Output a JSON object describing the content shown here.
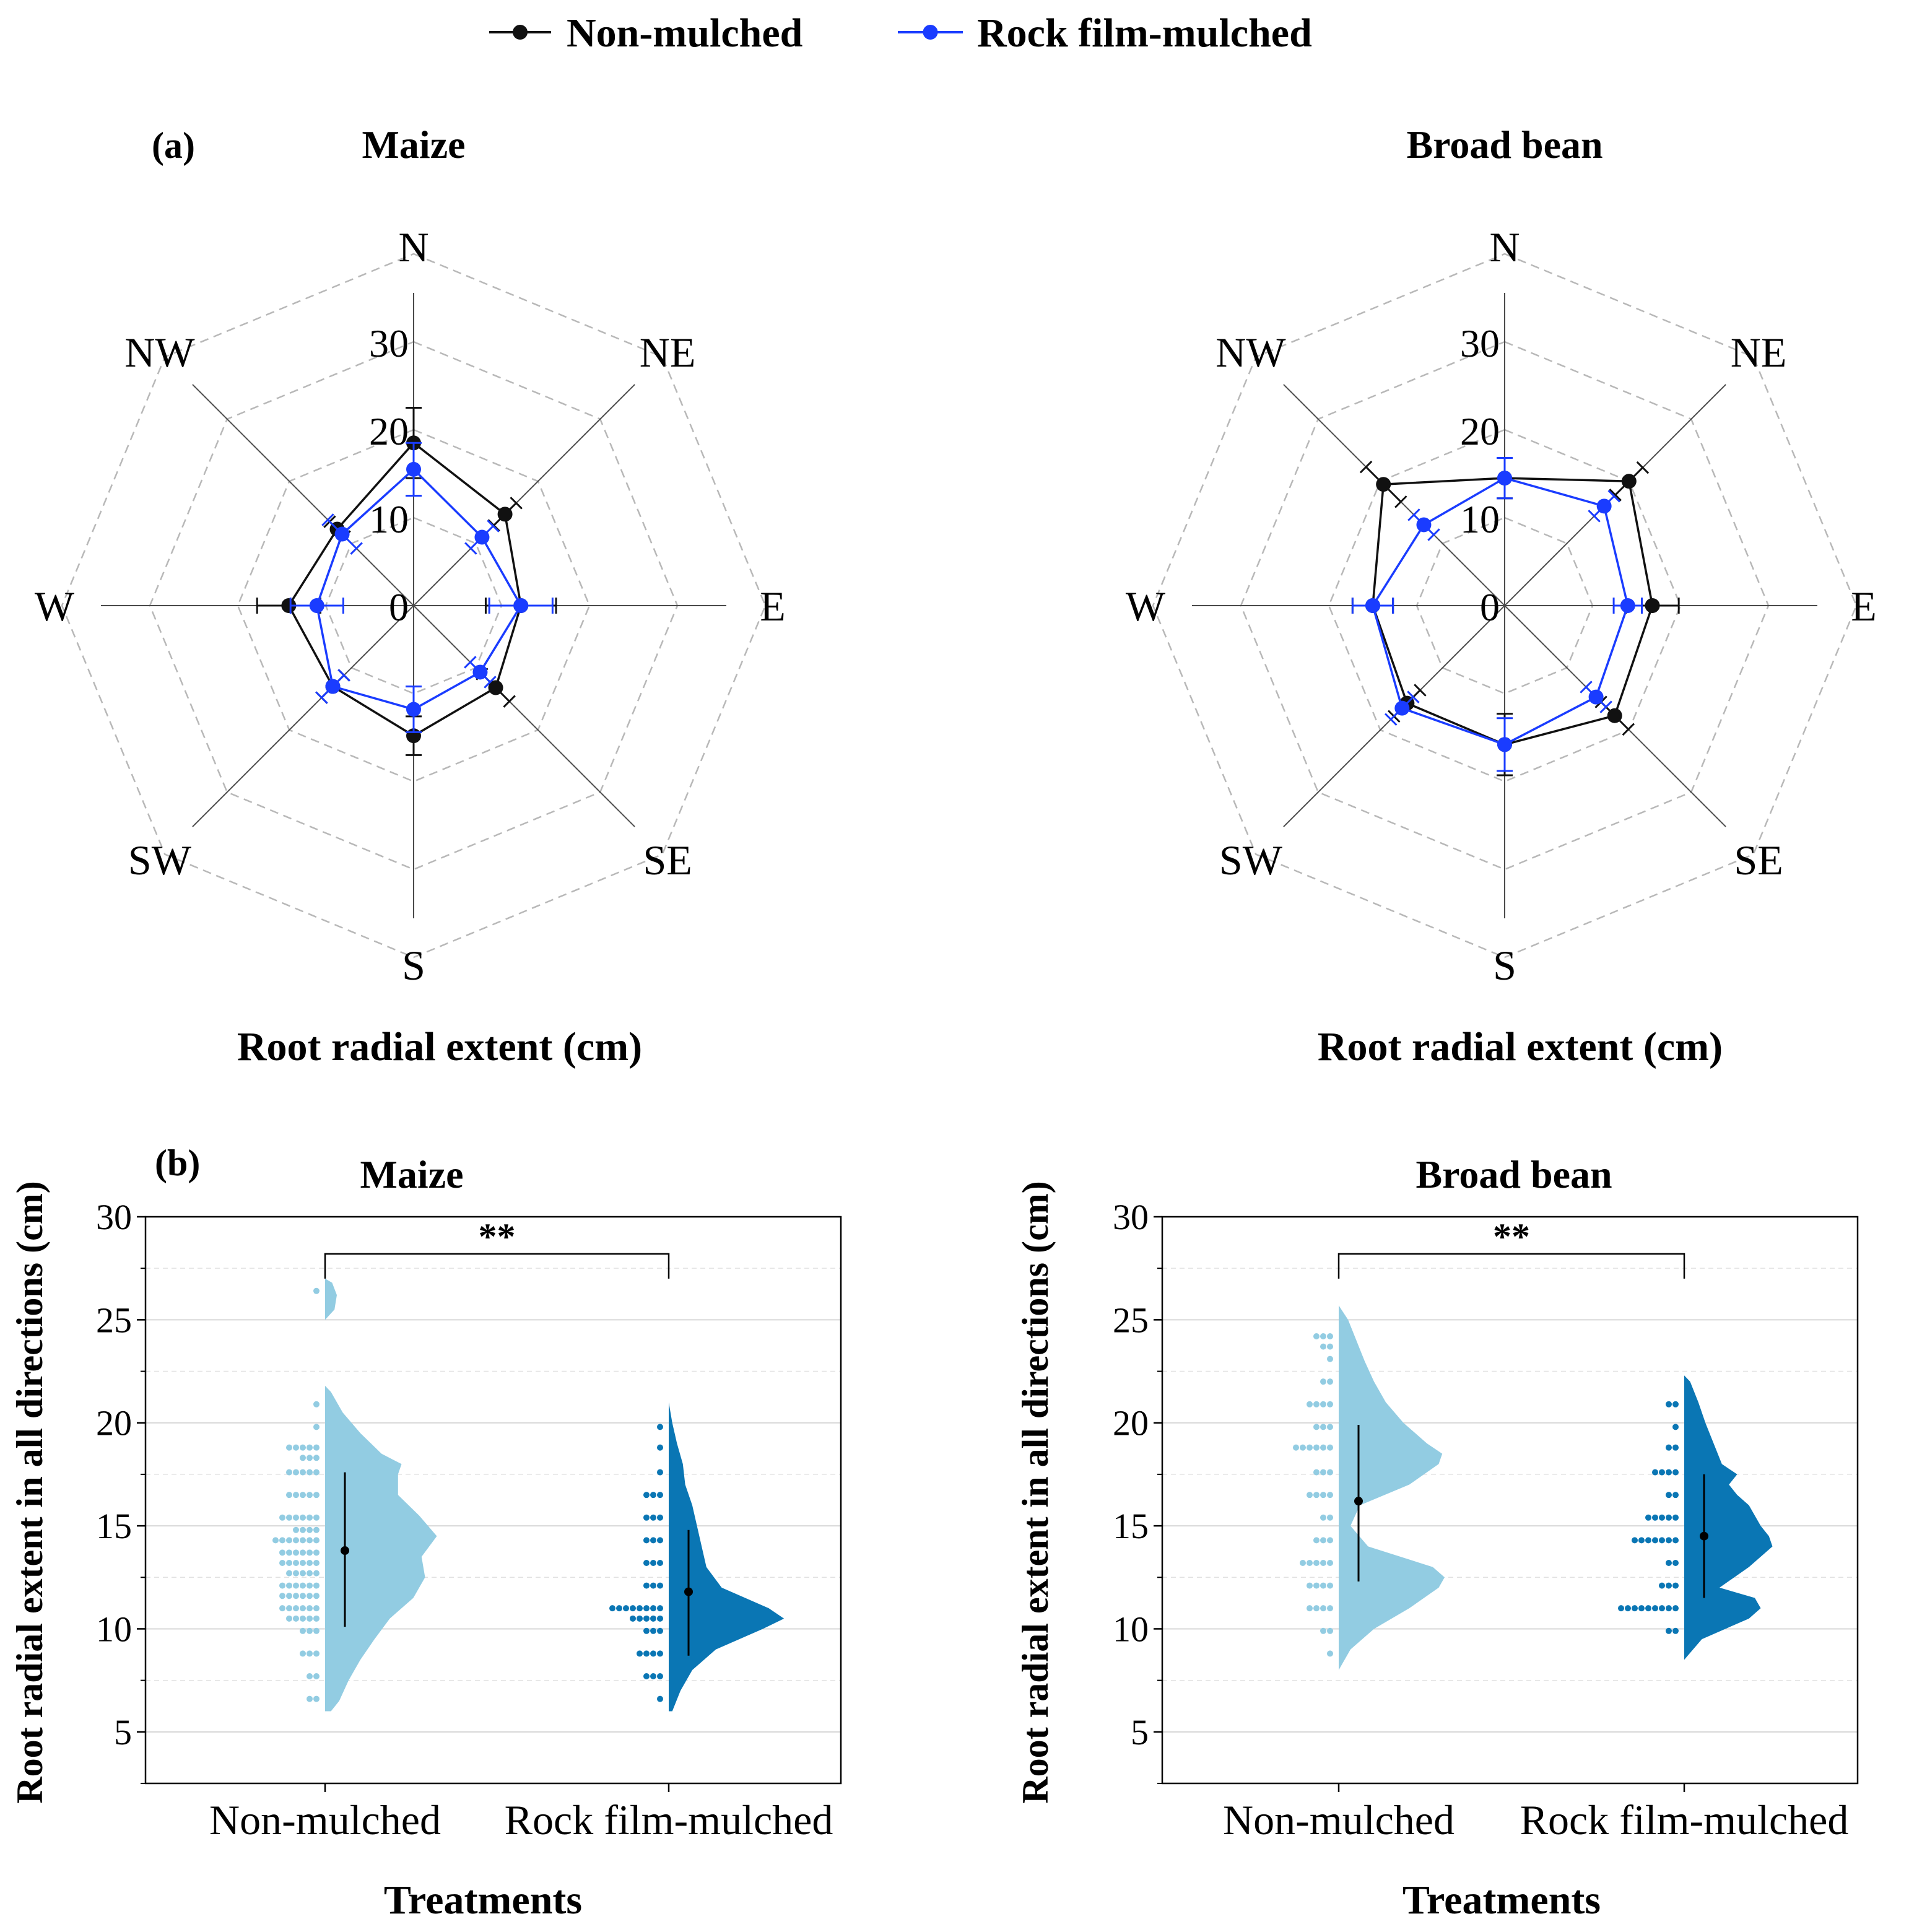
{
  "legend": {
    "entries": [
      {
        "label": "Non-mulched",
        "color": "#111111"
      },
      {
        "label": "Rock film-mulched",
        "color": "#1a3cff"
      }
    ]
  },
  "panel_a": {
    "label": "(a)",
    "axis_title": "Root radial extent (cm)"
  },
  "panel_b": {
    "label": "(b)",
    "ylabel": "Root radial extent in all directions (cm)",
    "xlabel": "Treatments"
  },
  "chart_data": [
    {
      "id": "radar-maize",
      "type": "radar",
      "title": "Maize",
      "directions": [
        "N",
        "NE",
        "E",
        "SE",
        "S",
        "SW",
        "W",
        "NW"
      ],
      "r_ticks": [
        "0",
        "10",
        "20",
        "30"
      ],
      "r_max": 30,
      "series": [
        {
          "name": "Non-mulched",
          "values": [
            18.5,
            14.7,
            12.2,
            13.2,
            14.8,
            13.0,
            14.2,
            12.3
          ],
          "errors": [
            4.0,
            1.8,
            4.0,
            2.2,
            2.2,
            1.8,
            3.6,
            1.2
          ]
        },
        {
          "name": "Rock film-mulched",
          "values": [
            15.5,
            11.0,
            12.2,
            10.7,
            11.8,
            13.0,
            11.0,
            11.5
          ],
          "errors": [
            3.0,
            1.8,
            3.6,
            1.6,
            2.6,
            1.8,
            3.0,
            2.3
          ]
        }
      ]
    },
    {
      "id": "radar-broad-bean",
      "type": "radar",
      "title": "Broad bean",
      "directions": [
        "N",
        "NE",
        "E",
        "SE",
        "S",
        "SW",
        "W",
        "NW"
      ],
      "r_ticks": [
        "0",
        "10",
        "20",
        "30"
      ],
      "r_max": 30,
      "series": [
        {
          "name": "Non-mulched",
          "values": [
            14.5,
            20.0,
            16.8,
            17.7,
            15.8,
            15.7,
            15.0,
            19.5
          ],
          "errors": [
            2.3,
            2.2,
            3.0,
            2.2,
            3.5,
            2.1,
            2.3,
            2.8
          ]
        },
        {
          "name": "Rock film-mulched",
          "values": [
            14.5,
            16.0,
            14.0,
            14.7,
            15.8,
            16.5,
            15.0,
            13.0
          ],
          "errors": [
            2.3,
            1.6,
            1.6,
            1.6,
            3.0,
            1.8,
            2.3,
            1.6
          ]
        }
      ]
    },
    {
      "id": "raincloud-maize",
      "type": "raincloud",
      "title": "Maize",
      "xlabel": "Treatments",
      "ylabel": "Root radial extent in all directions (cm)",
      "ylim": [
        2.5,
        30
      ],
      "yticks": [
        "5",
        "10",
        "15",
        "20",
        "25",
        "30"
      ],
      "categories": [
        "Non-mulched",
        "Rock film-mulched"
      ],
      "significance": "**",
      "groups": [
        {
          "name": "Non-mulched",
          "color": "#92cce2",
          "mean": 13.8,
          "whisker": [
            10.1,
            17.6
          ],
          "density": [
            [
              6,
              0.05
            ],
            [
              6.5,
              0.12
            ],
            [
              7.5,
              0.2
            ],
            [
              8.5,
              0.3
            ],
            [
              9.5,
              0.42
            ],
            [
              10.5,
              0.55
            ],
            [
              11.5,
              0.75
            ],
            [
              12.5,
              0.85
            ],
            [
              13.5,
              0.82
            ],
            [
              14.5,
              0.95
            ],
            [
              15.5,
              0.8
            ],
            [
              16.5,
              0.62
            ],
            [
              17.5,
              0.62
            ],
            [
              18.0,
              0.65
            ],
            [
              18.5,
              0.48
            ],
            [
              19.5,
              0.3
            ],
            [
              20.5,
              0.15
            ],
            [
              21.5,
              0.05
            ],
            [
              21.8,
              0.0
            ]
          ],
          "density_extra": [
            [
              25,
              0.0
            ],
            [
              25.5,
              0.08
            ],
            [
              26.2,
              0.1
            ],
            [
              26.8,
              0.06
            ],
            [
              27,
              0.0
            ]
          ],
          "dots": [
            [
              26.4,
              1
            ],
            [
              20.9,
              1
            ],
            [
              19.8,
              1
            ],
            [
              18.8,
              5
            ],
            [
              18.3,
              3
            ],
            [
              17.6,
              5
            ],
            [
              16.5,
              5
            ],
            [
              15.4,
              6
            ],
            [
              14.8,
              4
            ],
            [
              14.3,
              7
            ],
            [
              13.7,
              6
            ],
            [
              13.2,
              6
            ],
            [
              12.7,
              5
            ],
            [
              12.1,
              6
            ],
            [
              11.6,
              6
            ],
            [
              11.0,
              6
            ],
            [
              10.5,
              5
            ],
            [
              9.9,
              3
            ],
            [
              8.8,
              3
            ],
            [
              7.7,
              2
            ],
            [
              6.6,
              2
            ]
          ]
        },
        {
          "name": "Rock film-mulched",
          "color": "#0a76b4",
          "mean": 11.8,
          "whisker": [
            8.7,
            14.8
          ],
          "density": [
            [
              6,
              0.03
            ],
            [
              7,
              0.1
            ],
            [
              8,
              0.2
            ],
            [
              9,
              0.4
            ],
            [
              10,
              0.8
            ],
            [
              10.5,
              0.98
            ],
            [
              11,
              0.85
            ],
            [
              12,
              0.45
            ],
            [
              13,
              0.32
            ],
            [
              14,
              0.28
            ],
            [
              15,
              0.24
            ],
            [
              16,
              0.2
            ],
            [
              17,
              0.14
            ],
            [
              18,
              0.12
            ],
            [
              19,
              0.07
            ],
            [
              20,
              0.03
            ],
            [
              21,
              0.0
            ]
          ],
          "dots": [
            [
              19.8,
              1
            ],
            [
              18.8,
              1
            ],
            [
              17.6,
              1
            ],
            [
              16.5,
              3
            ],
            [
              15.4,
              3
            ],
            [
              14.3,
              3
            ],
            [
              13.2,
              3
            ],
            [
              12.1,
              3
            ],
            [
              11.0,
              8
            ],
            [
              10.5,
              5
            ],
            [
              9.9,
              3
            ],
            [
              8.8,
              4
            ],
            [
              7.7,
              3
            ],
            [
              6.6,
              1
            ]
          ]
        }
      ]
    },
    {
      "id": "raincloud-broad-bean",
      "type": "raincloud",
      "title": "Broad bean",
      "xlabel": "Treatments",
      "ylabel": "Root radial extent in all directions (cm)",
      "ylim": [
        2.5,
        30
      ],
      "yticks": [
        "5",
        "10",
        "15",
        "20",
        "25",
        "30"
      ],
      "categories": [
        "Non-mulched",
        "Rock film-mulched"
      ],
      "significance": "**",
      "groups": [
        {
          "name": "Non-mulched",
          "color": "#92cce2",
          "mean": 16.2,
          "whisker": [
            12.3,
            19.9
          ],
          "density": [
            [
              8,
              0.0
            ],
            [
              9,
              0.1
            ],
            [
              10,
              0.3
            ],
            [
              11,
              0.6
            ],
            [
              12,
              0.85
            ],
            [
              12.5,
              0.9
            ],
            [
              13,
              0.8
            ],
            [
              14,
              0.25
            ],
            [
              15,
              0.1
            ],
            [
              16,
              0.18
            ],
            [
              17,
              0.6
            ],
            [
              18,
              0.85
            ],
            [
              18.5,
              0.88
            ],
            [
              19,
              0.75
            ],
            [
              20,
              0.55
            ],
            [
              21,
              0.4
            ],
            [
              22,
              0.3
            ],
            [
              23,
              0.22
            ],
            [
              24,
              0.15
            ],
            [
              25,
              0.08
            ],
            [
              25.7,
              0.0
            ]
          ],
          "dots": [
            [
              24.2,
              3
            ],
            [
              23.7,
              2
            ],
            [
              23.1,
              1
            ],
            [
              22.0,
              2
            ],
            [
              20.9,
              4
            ],
            [
              19.8,
              3
            ],
            [
              18.8,
              6
            ],
            [
              17.6,
              3
            ],
            [
              16.5,
              4
            ],
            [
              15.4,
              2
            ],
            [
              14.3,
              3
            ],
            [
              13.2,
              5
            ],
            [
              12.1,
              4
            ],
            [
              11.0,
              4
            ],
            [
              9.9,
              2
            ],
            [
              8.8,
              1
            ]
          ]
        },
        {
          "name": "Rock film-mulched",
          "color": "#0a76b4",
          "mean": 14.5,
          "whisker": [
            11.5,
            17.5
          ],
          "density": [
            [
              8.5,
              0.0
            ],
            [
              9.5,
              0.15
            ],
            [
              10.5,
              0.55
            ],
            [
              11.0,
              0.65
            ],
            [
              11.5,
              0.6
            ],
            [
              12,
              0.3
            ],
            [
              13,
              0.55
            ],
            [
              14,
              0.75
            ],
            [
              14.5,
              0.72
            ],
            [
              15,
              0.65
            ],
            [
              16,
              0.55
            ],
            [
              16.5,
              0.45
            ],
            [
              17,
              0.38
            ],
            [
              17.5,
              0.45
            ],
            [
              18,
              0.32
            ],
            [
              19,
              0.25
            ],
            [
              20,
              0.18
            ],
            [
              21,
              0.12
            ],
            [
              22,
              0.05
            ],
            [
              22.3,
              0.0
            ]
          ],
          "dots": [
            [
              20.9,
              2
            ],
            [
              19.8,
              1
            ],
            [
              18.8,
              2
            ],
            [
              17.6,
              4
            ],
            [
              16.5,
              2
            ],
            [
              15.4,
              5
            ],
            [
              14.3,
              7
            ],
            [
              13.2,
              2
            ],
            [
              12.1,
              3
            ],
            [
              11.0,
              9
            ],
            [
              9.9,
              2
            ]
          ]
        }
      ]
    }
  ]
}
